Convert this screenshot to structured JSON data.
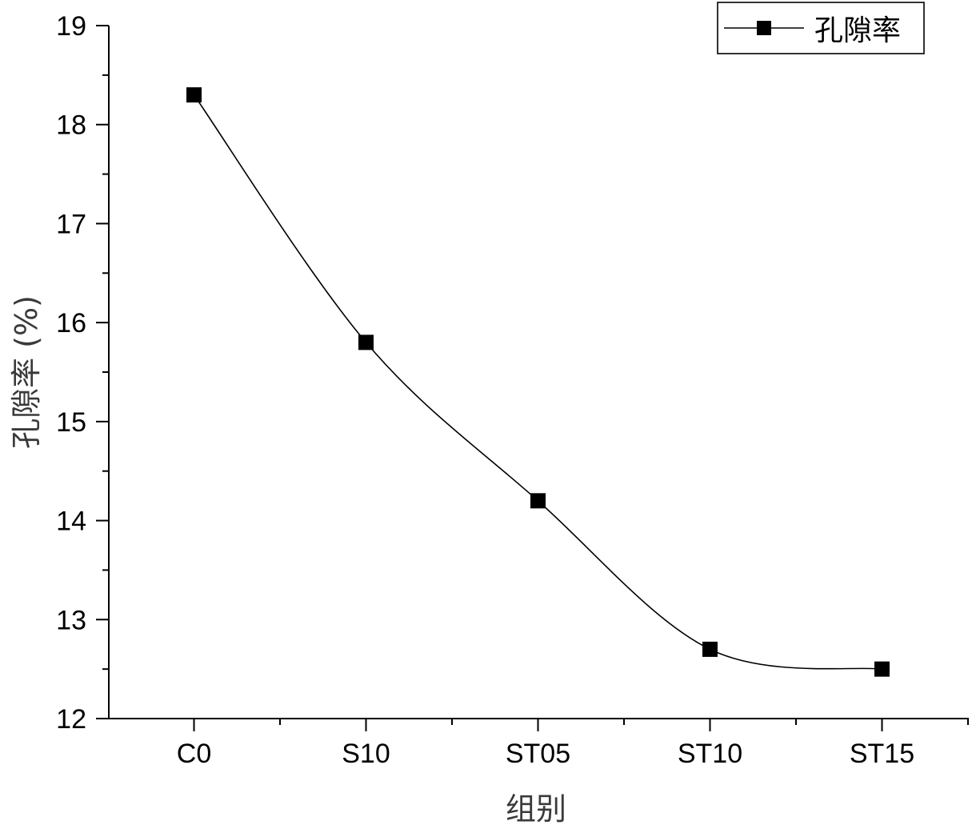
{
  "chart_data": {
    "type": "line",
    "categories": [
      "C0",
      "S10",
      "ST05",
      "ST10",
      "ST15"
    ],
    "series": [
      {
        "name": "孔隙率",
        "values": [
          18.3,
          15.8,
          14.2,
          12.7,
          12.5
        ]
      }
    ],
    "title": "",
    "xlabel": "组别",
    "ylabel": "孔隙率 (%)",
    "ylim": [
      12,
      19
    ],
    "yticks": [
      12,
      13,
      14,
      15,
      16,
      17,
      18,
      19
    ],
    "grid": false,
    "legend_position": "top-right",
    "marker": "square",
    "line_style": "smooth",
    "colors": {
      "line": "#000000",
      "marker": "#000000",
      "axis": "#000000"
    }
  }
}
